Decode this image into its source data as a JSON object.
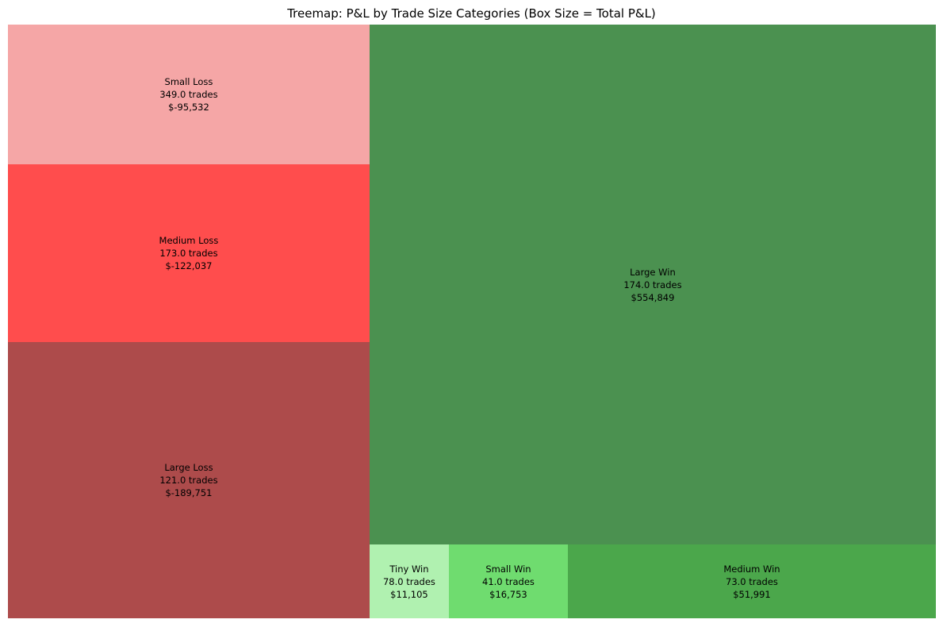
{
  "chart_data": {
    "type": "treemap",
    "title": "Treemap: P&L by Trade Size Categories (Box Size = Total P&L)",
    "background": "#ffffff",
    "text_color": "#000000",
    "legend": "none",
    "axes": "off",
    "items": [
      {
        "label": "Small Loss",
        "trades": 349.0,
        "pnl": -95532,
        "trades_label": "349.0 trades",
        "pnl_label": "$-95,532",
        "color": "#f5a6a6",
        "rect": {
          "x": 0.0,
          "y": 0.0,
          "w": 0.3897,
          "h": 0.2353
        }
      },
      {
        "label": "Medium Loss",
        "trades": 173.0,
        "pnl": -122037,
        "trades_label": "173.0 trades",
        "pnl_label": "$-122,037",
        "color": "#ff4d4d",
        "rect": {
          "x": 0.0,
          "y": 0.2353,
          "w": 0.3897,
          "h": 0.2995
        }
      },
      {
        "label": "Large Loss",
        "trades": 121.0,
        "pnl": -189751,
        "trades_label": "121.0 trades",
        "pnl_label": "$-189,751",
        "color": "#ad4b4b",
        "rect": {
          "x": 0.0,
          "y": 0.5348,
          "w": 0.3897,
          "h": 0.4652
        }
      },
      {
        "label": "Large Win",
        "trades": 174.0,
        "pnl": 554849,
        "trades_label": "174.0 trades",
        "pnl_label": "$554,849",
        "color": "#4b9150",
        "rect": {
          "x": 0.3897,
          "y": 0.0,
          "w": 0.6103,
          "h": 0.8757
        }
      },
      {
        "label": "Tiny Win",
        "trades": 78.0,
        "pnl": 11105,
        "trades_label": "78.0 trades",
        "pnl_label": "$11,105",
        "color": "#b0f1b0",
        "rect": {
          "x": 0.3897,
          "y": 0.8757,
          "w": 0.0855,
          "h": 0.1243
        }
      },
      {
        "label": "Small Win",
        "trades": 41.0,
        "pnl": 16753,
        "trades_label": "41.0 trades",
        "pnl_label": "$16,753",
        "color": "#6fdc6f",
        "rect": {
          "x": 0.4752,
          "y": 0.8757,
          "w": 0.1282,
          "h": 0.1243
        }
      },
      {
        "label": "Medium Win",
        "trades": 73.0,
        "pnl": 51991,
        "trades_label": "73.0 trades",
        "pnl_label": "$51,991",
        "color": "#4ba74b",
        "rect": {
          "x": 0.6034,
          "y": 0.8757,
          "w": 0.3966,
          "h": 0.1243
        }
      }
    ]
  }
}
